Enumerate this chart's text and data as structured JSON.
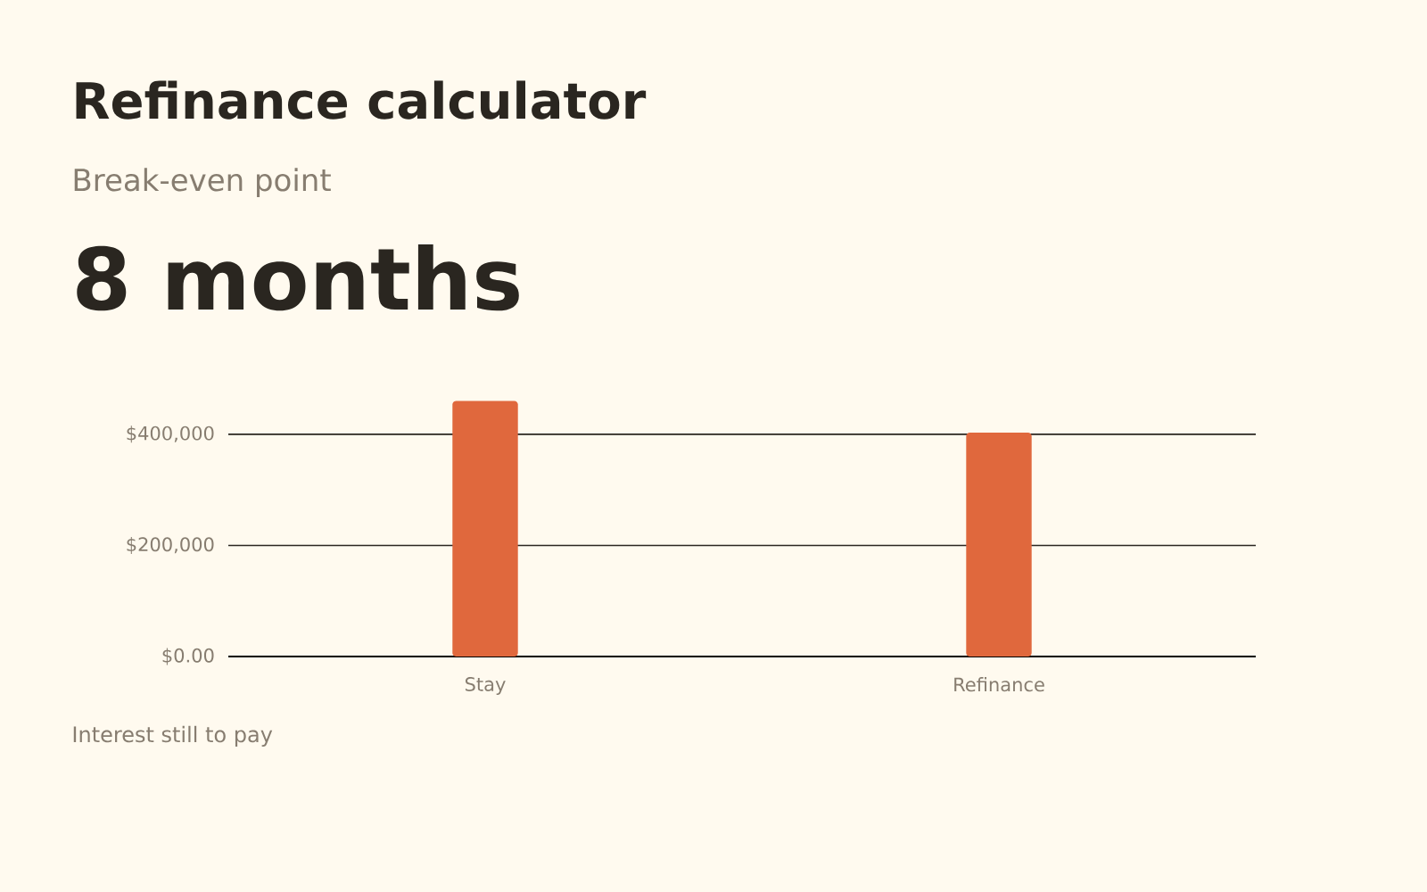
{
  "chart_data": {
    "type": "bar",
    "title": "Refinance calculator",
    "subtitle": "Break-even point",
    "annotations": [
      "8 months",
      "Interest still to pay"
    ],
    "categories": [
      "Stay",
      "Refinance"
    ],
    "values": [
      460000,
      403000
    ],
    "color": "#e0683d",
    "ylim": [
      0,
      460000
    ],
    "yticks": [
      {
        "value": 0,
        "label": "$0.00"
      },
      {
        "value": 200000,
        "label": "$200,000"
      },
      {
        "value": 400000,
        "label": "$400,000"
      }
    ],
    "grid": "y"
  }
}
